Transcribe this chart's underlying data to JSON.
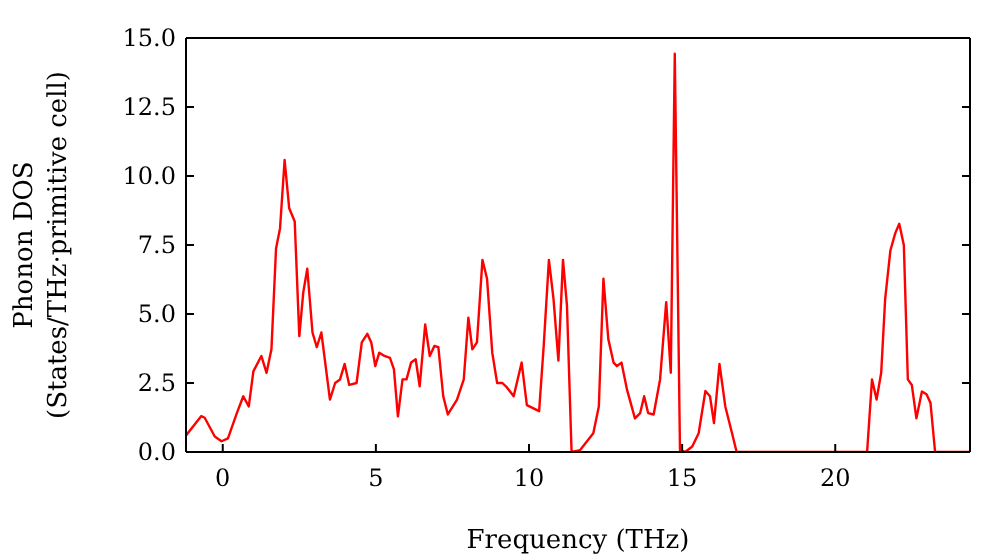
{
  "chart_data": {
    "type": "line",
    "xlabel": "Frequency (THz)",
    "ylabel": "Phonon DOS\n(States/THz·primitive cell)",
    "xlim": [
      -1.2,
      24.4
    ],
    "ylim": [
      0,
      15
    ],
    "xticks": [
      0,
      5,
      10,
      15,
      20
    ],
    "yticks": [
      {
        "value": 0,
        "label": "0.0"
      },
      {
        "value": 2.5,
        "label": "2.5"
      },
      {
        "value": 5,
        "label": "5.0"
      },
      {
        "value": 7.5,
        "label": "7.5"
      },
      {
        "value": 10,
        "label": "10.0"
      },
      {
        "value": 12.5,
        "label": "12.5"
      },
      {
        "value": 15,
        "label": "15.0"
      }
    ],
    "grid": false,
    "marker": "none",
    "line_style": "solid",
    "series": [
      {
        "color": "#ff0000",
        "x": [
          -1.2,
          -0.7,
          -0.59,
          -0.26,
          -0.04,
          0.17,
          0.46,
          0.67,
          0.85,
          1.0,
          1.26,
          1.43,
          1.59,
          1.74,
          1.87,
          2.02,
          2.17,
          2.35,
          2.5,
          2.63,
          2.76,
          2.93,
          3.07,
          3.22,
          3.5,
          3.67,
          3.83,
          3.98,
          4.13,
          4.37,
          4.54,
          4.72,
          4.85,
          4.98,
          5.11,
          5.28,
          5.46,
          5.59,
          5.72,
          5.87,
          6.0,
          6.15,
          6.3,
          6.43,
          6.61,
          6.76,
          6.91,
          7.04,
          7.2,
          7.35,
          7.65,
          7.87,
          8.02,
          8.15,
          8.3,
          8.48,
          8.63,
          8.8,
          8.96,
          9.13,
          9.28,
          9.5,
          9.76,
          9.93,
          10.33,
          10.48,
          10.65,
          10.8,
          10.96,
          11.11,
          11.24,
          11.39,
          11.67,
          12.1,
          12.28,
          12.43,
          12.59,
          12.76,
          12.87,
          13.02,
          13.2,
          13.46,
          13.63,
          13.76,
          13.89,
          14.07,
          14.28,
          14.48,
          14.63,
          14.76,
          14.93,
          15.1,
          15.33,
          15.54,
          15.76,
          15.91,
          16.04,
          16.22,
          16.41,
          16.63,
          16.78,
          21.04,
          21.2,
          21.35,
          21.5,
          21.63,
          21.8,
          21.96,
          22.09,
          22.24,
          22.37,
          22.5,
          22.65,
          22.83,
          22.98,
          23.11,
          23.26,
          24.4
        ],
        "values": [
          0.6,
          1.3,
          1.24,
          0.56,
          0.39,
          0.49,
          1.41,
          2.02,
          1.65,
          2.92,
          3.48,
          2.87,
          3.72,
          7.37,
          8.1,
          10.58,
          8.83,
          8.35,
          4.2,
          5.79,
          6.64,
          4.33,
          3.8,
          4.33,
          1.9,
          2.5,
          2.63,
          3.19,
          2.43,
          2.5,
          3.97,
          4.28,
          3.97,
          3.11,
          3.6,
          3.48,
          3.41,
          2.99,
          1.29,
          2.63,
          2.63,
          3.24,
          3.36,
          2.38,
          4.62,
          3.48,
          3.84,
          3.8,
          2.02,
          1.36,
          1.9,
          2.63,
          4.87,
          3.72,
          3.97,
          6.96,
          6.28,
          3.6,
          2.5,
          2.5,
          2.34,
          2.02,
          3.24,
          1.7,
          1.48,
          3.84,
          6.96,
          5.55,
          3.31,
          6.96,
          5.3,
          0,
          0.07,
          0.68,
          1.65,
          6.28,
          4.09,
          3.24,
          3.11,
          3.24,
          2.26,
          1.22,
          1.41,
          2.02,
          1.41,
          1.36,
          2.63,
          5.43,
          2.87,
          14.43,
          0.07,
          0,
          0.2,
          0.68,
          2.21,
          2.02,
          1.05,
          3.19,
          1.65,
          0.68,
          0,
          0,
          2.63,
          1.9,
          2.87,
          5.55,
          7.3,
          7.93,
          8.27,
          7.49,
          2.63,
          2.43,
          1.22,
          2.19,
          2.09,
          1.78,
          0,
          0
        ]
      }
    ]
  }
}
